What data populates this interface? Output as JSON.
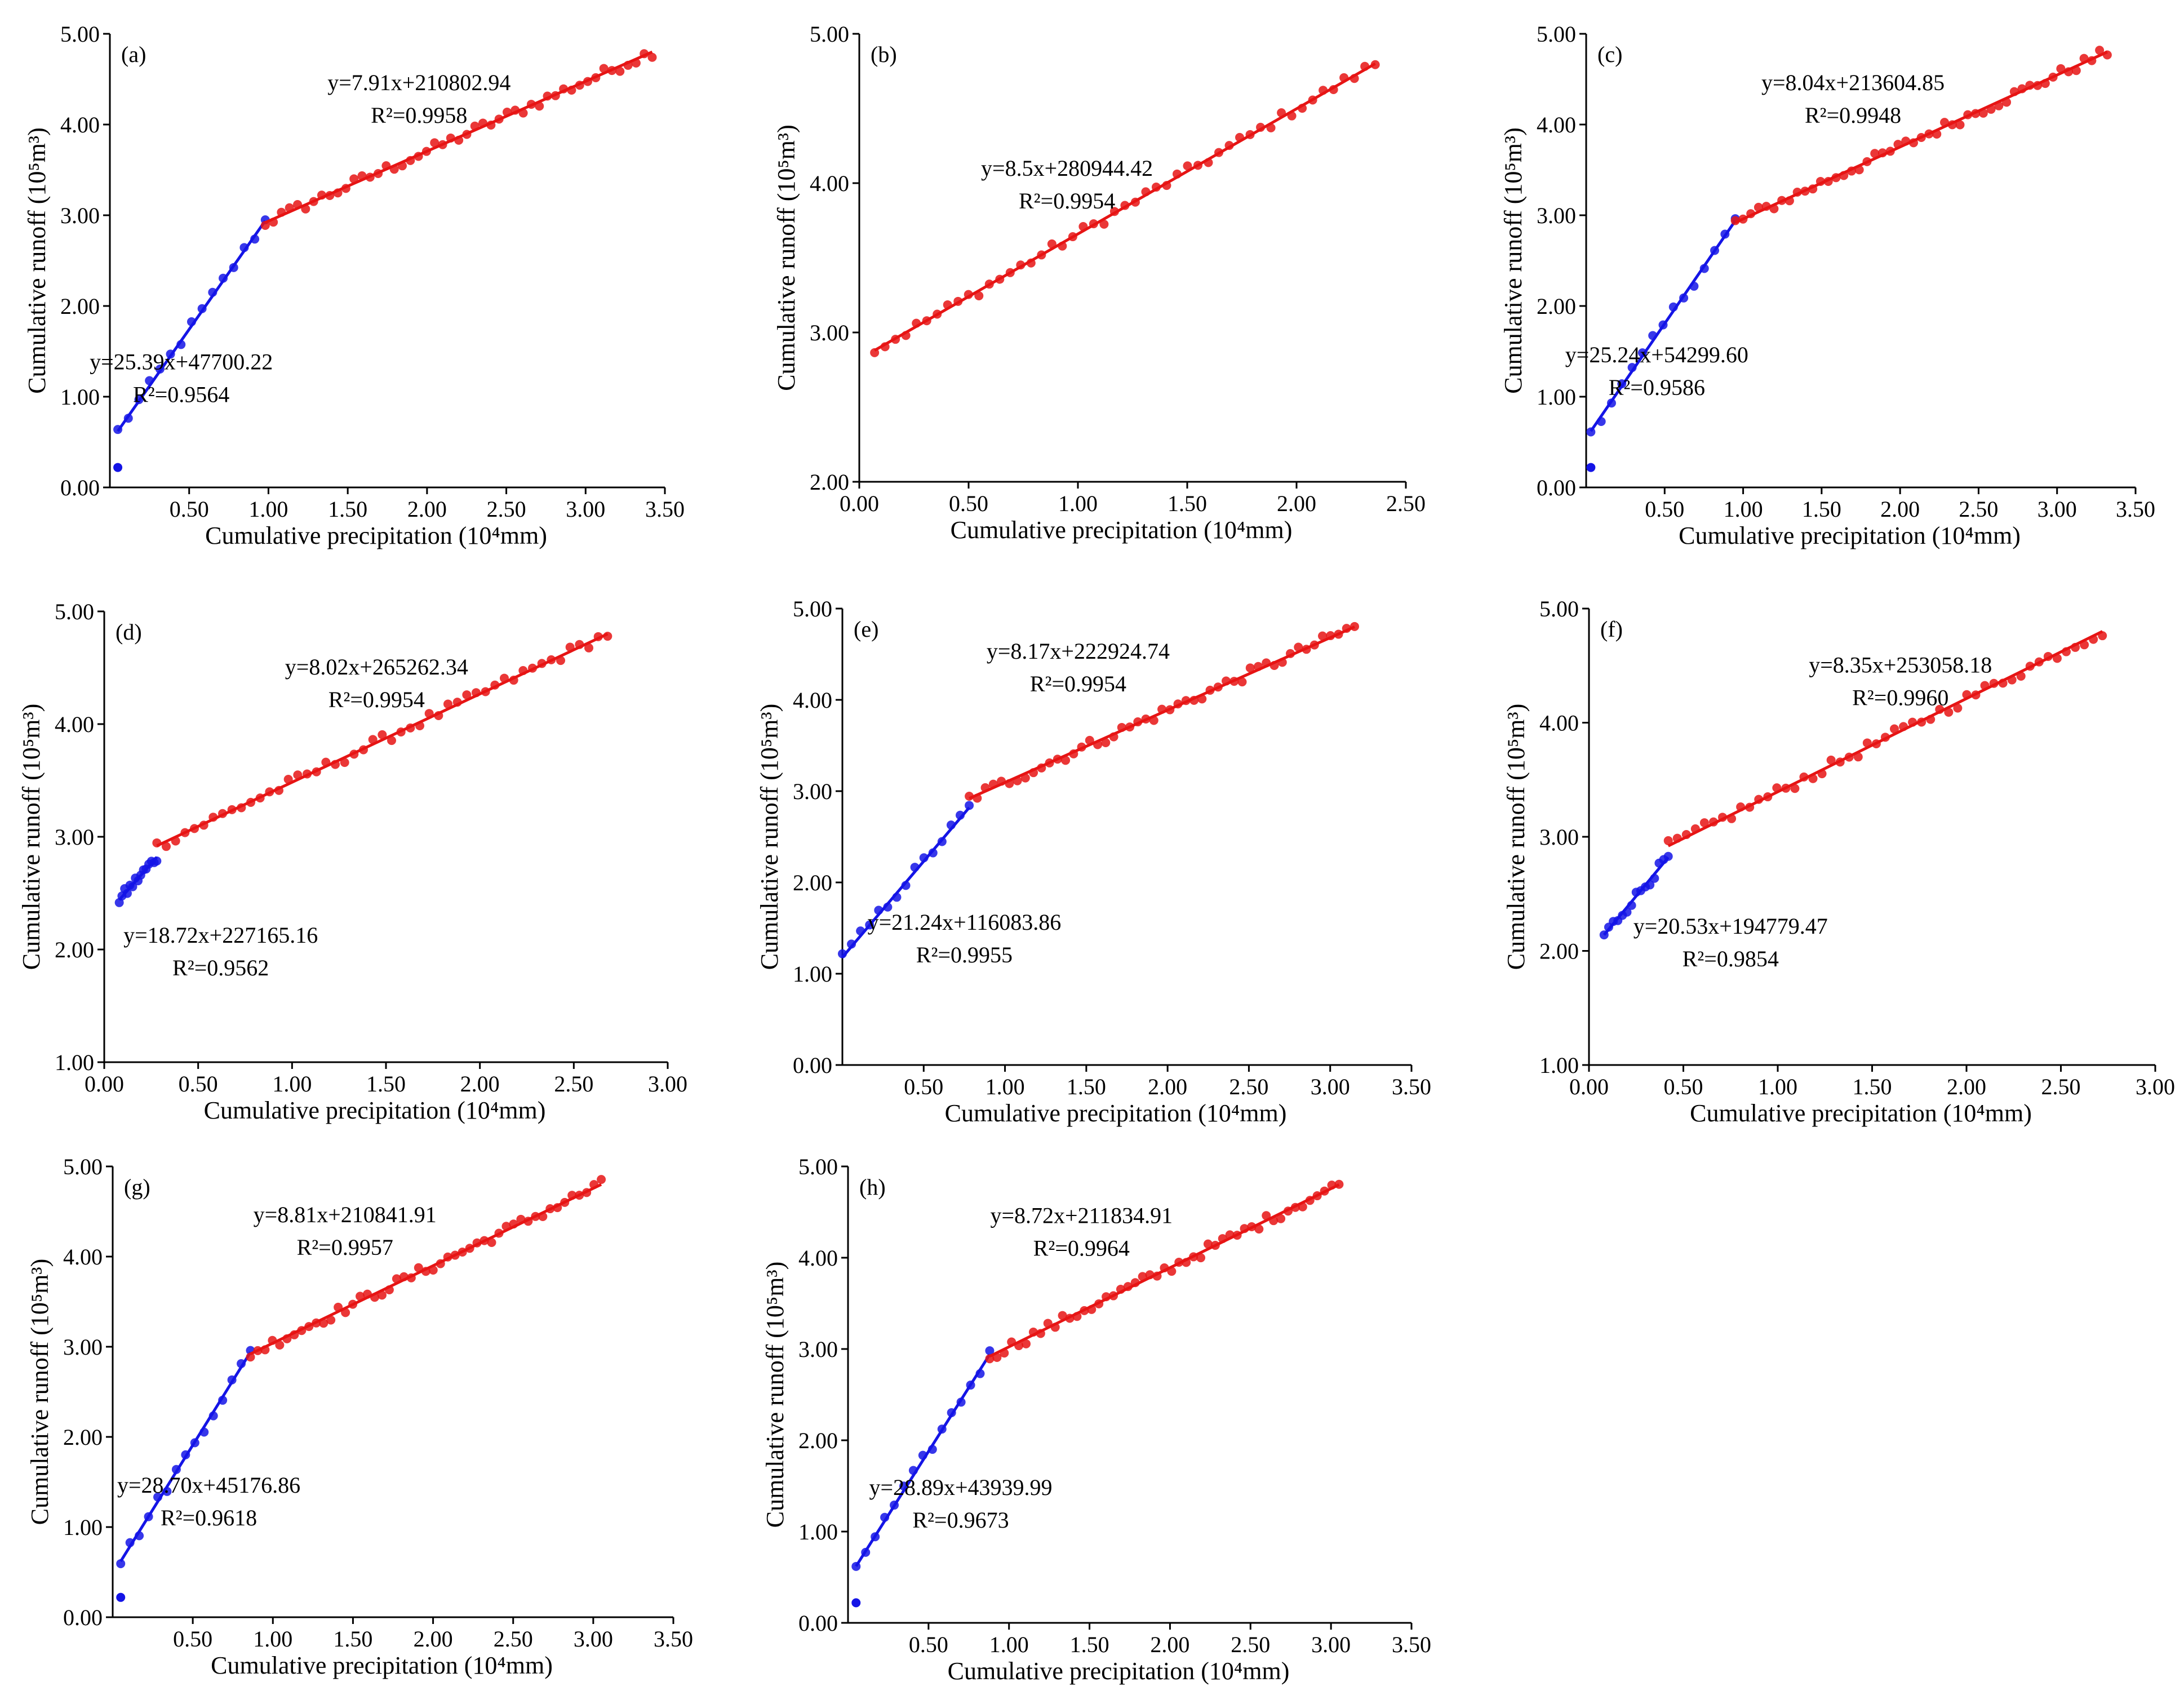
{
  "figure": {
    "xlabel": "Cumulative precipitation (10⁴mm)",
    "ylabel": "Cumulative runoff (10⁵m³)"
  },
  "chart_data": [
    {
      "type": "scatter",
      "panel": "(a)",
      "xlim": [
        0,
        3.5
      ],
      "ylim": [
        0,
        5
      ],
      "xticks": [
        "0.50",
        "1.00",
        "1.50",
        "2.00",
        "2.50",
        "3.00",
        "3.50"
      ],
      "yticks": [
        "0.00",
        "1.00",
        "2.00",
        "3.00",
        "4.00",
        "5.00"
      ],
      "break": 0.98,
      "segments": [
        {
          "name": "stage 1",
          "color": "#1414e6",
          "x0": 0.05,
          "x1": 0.98,
          "equation": "y=25.39x+47700.22",
          "r2": "R²=0.9564",
          "eq_anchor": [
            0.45,
            1.3
          ]
        },
        {
          "name": "stage 2",
          "color": "#e61414",
          "x0": 0.98,
          "x1": 3.42,
          "equation": "y=7.91x+210802.94",
          "r2": "R²=0.9958",
          "eq_anchor": [
            1.95,
            4.38
          ]
        }
      ],
      "outlier": {
        "x": 0.05,
        "y": 0.22
      }
    },
    {
      "type": "scatter",
      "panel": "(b)",
      "xlim": [
        0,
        2.5
      ],
      "ylim": [
        2,
        5
      ],
      "xticks": [
        "0.00",
        "0.50",
        "1.00",
        "1.50",
        "2.00",
        "2.50"
      ],
      "yticks": [
        "2.00",
        "3.00",
        "4.00",
        "5.00"
      ],
      "break": null,
      "segments": [
        {
          "name": "stage 1",
          "color": "#e61414",
          "x0": 0.07,
          "x1": 2.36,
          "equation": "y=8.5x+280944.42",
          "r2": "R²=0.9954",
          "eq_anchor": [
            0.95,
            4.05
          ]
        }
      ],
      "outlier": null
    },
    {
      "type": "scatter",
      "panel": "(c)",
      "xlim": [
        0,
        3.5
      ],
      "ylim": [
        0,
        5
      ],
      "xticks": [
        "0.50",
        "1.00",
        "1.50",
        "2.00",
        "2.50",
        "3.00",
        "3.50"
      ],
      "yticks": [
        "0.00",
        "1.00",
        "2.00",
        "3.00",
        "4.00",
        "5.00"
      ],
      "break": 0.95,
      "segments": [
        {
          "name": "stage 1",
          "color": "#1414e6",
          "x0": 0.03,
          "x1": 0.95,
          "equation": "y=25.24x+54299.60",
          "r2": "R²=0.9586",
          "eq_anchor": [
            0.45,
            1.38
          ]
        },
        {
          "name": "stage 2",
          "color": "#e61414",
          "x0": 0.95,
          "x1": 3.32,
          "equation": "y=8.04x+213604.85",
          "r2": "R²=0.9948",
          "eq_anchor": [
            1.7,
            4.38
          ]
        }
      ],
      "outlier": {
        "x": 0.03,
        "y": 0.22
      }
    },
    {
      "type": "scatter",
      "panel": "(d)",
      "xlim": [
        0,
        3
      ],
      "ylim": [
        1,
        5
      ],
      "xticks": [
        "0.00",
        "0.50",
        "1.00",
        "1.50",
        "2.00",
        "2.50",
        "3.00"
      ],
      "yticks": [
        "1.00",
        "2.00",
        "3.00",
        "4.00",
        "5.00"
      ],
      "break": 0.28,
      "segments": [
        {
          "name": "stage 1",
          "color": "#1414e6",
          "x0": 0.08,
          "x1": 0.28,
          "equation": "y=18.72x+227165.16",
          "r2": "R²=0.9562",
          "eq_anchor": [
            0.62,
            2.06
          ]
        },
        {
          "name": "stage 2",
          "color": "#e61414",
          "x0": 0.28,
          "x1": 2.68,
          "equation": "y=8.02x+265262.34",
          "r2": "R²=0.9954",
          "eq_anchor": [
            1.45,
            4.44
          ]
        }
      ],
      "outlier": null
    },
    {
      "type": "scatter",
      "panel": "(e)",
      "xlim": [
        0,
        3.5
      ],
      "ylim": [
        0,
        5
      ],
      "xticks": [
        "0.50",
        "1.00",
        "1.50",
        "2.00",
        "2.50",
        "3.00",
        "3.50"
      ],
      "yticks": [
        "0.00",
        "1.00",
        "2.00",
        "3.00",
        "4.00",
        "5.00"
      ],
      "break": 0.78,
      "segments": [
        {
          "name": "stage 1",
          "color": "#1414e6",
          "x0": 0.0,
          "x1": 0.78,
          "equation": "y=21.24x+116083.86",
          "r2": "R²=0.9955",
          "eq_anchor": [
            0.75,
            1.48
          ]
        },
        {
          "name": "stage 2",
          "color": "#e61414",
          "x0": 0.78,
          "x1": 3.15,
          "equation": "y=8.17x+222924.74",
          "r2": "R²=0.9954",
          "eq_anchor": [
            1.45,
            4.45
          ]
        }
      ],
      "outlier": null
    },
    {
      "type": "scatter",
      "panel": "(f)",
      "xlim": [
        0,
        3
      ],
      "ylim": [
        1,
        5
      ],
      "xticks": [
        "0.00",
        "0.50",
        "1.00",
        "1.50",
        "2.00",
        "2.50",
        "3.00"
      ],
      "yticks": [
        "1.00",
        "2.00",
        "3.00",
        "4.00",
        "5.00"
      ],
      "break": 0.42,
      "segments": [
        {
          "name": "stage 1",
          "color": "#1414e6",
          "x0": 0.08,
          "x1": 0.42,
          "equation": "y=20.53x+194779.47",
          "r2": "R²=0.9854",
          "eq_anchor": [
            0.75,
            2.15
          ]
        },
        {
          "name": "stage 2",
          "color": "#e61414",
          "x0": 0.42,
          "x1": 2.72,
          "equation": "y=8.35x+253058.18",
          "r2": "R²=0.9960",
          "eq_anchor": [
            1.65,
            4.44
          ]
        }
      ],
      "outlier": null
    },
    {
      "type": "scatter",
      "panel": "(g)",
      "xlim": [
        0,
        3.5
      ],
      "ylim": [
        0,
        5
      ],
      "xticks": [
        "0.50",
        "1.00",
        "1.50",
        "2.00",
        "2.50",
        "3.00",
        "3.50"
      ],
      "yticks": [
        "0.00",
        "1.00",
        "2.00",
        "3.00",
        "4.00",
        "5.00"
      ],
      "break": 0.86,
      "segments": [
        {
          "name": "stage 1",
          "color": "#1414e6",
          "x0": 0.05,
          "x1": 0.86,
          "equation": "y=28.70x+45176.86",
          "r2": "R²=0.9618",
          "eq_anchor": [
            0.6,
            1.38
          ]
        },
        {
          "name": "stage 2",
          "color": "#e61414",
          "x0": 0.86,
          "x1": 3.05,
          "equation": "y=8.81x+210841.91",
          "r2": "R²=0.9957",
          "eq_anchor": [
            1.45,
            4.38
          ]
        }
      ],
      "outlier": {
        "x": 0.05,
        "y": 0.22
      }
    },
    {
      "type": "scatter",
      "panel": "(h)",
      "xlim": [
        0,
        3.5
      ],
      "ylim": [
        0,
        5
      ],
      "xticks": [
        "0.50",
        "1.00",
        "1.50",
        "2.00",
        "2.50",
        "3.00",
        "3.50"
      ],
      "yticks": [
        "0.00",
        "1.00",
        "2.00",
        "3.00",
        "4.00",
        "5.00"
      ],
      "break": 0.88,
      "segments": [
        {
          "name": "stage 1",
          "color": "#1414e6",
          "x0": 0.05,
          "x1": 0.88,
          "equation": "y=28.89x+43939.99",
          "r2": "R²=0.9673",
          "eq_anchor": [
            0.7,
            1.4
          ]
        },
        {
          "name": "stage 2",
          "color": "#e61414",
          "x0": 0.88,
          "x1": 3.05,
          "equation": "y=8.72x+211834.91",
          "r2": "R²=0.9964",
          "eq_anchor": [
            1.45,
            4.38
          ]
        }
      ],
      "outlier": {
        "x": 0.05,
        "y": 0.22
      }
    }
  ]
}
